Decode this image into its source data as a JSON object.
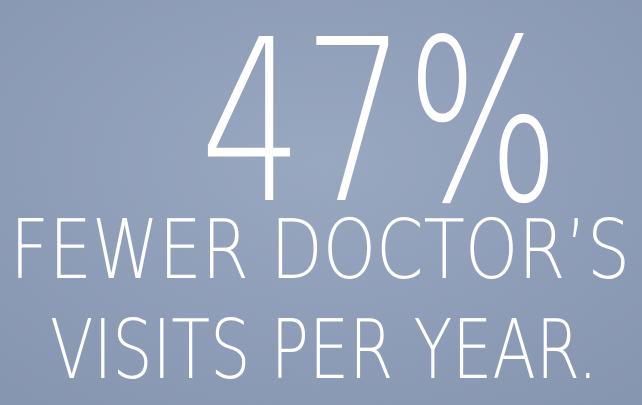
{
  "headline": "47%",
  "lines": [
    "FEWER DOCTOR’S",
    "VISITS PER YEAR."
  ]
}
